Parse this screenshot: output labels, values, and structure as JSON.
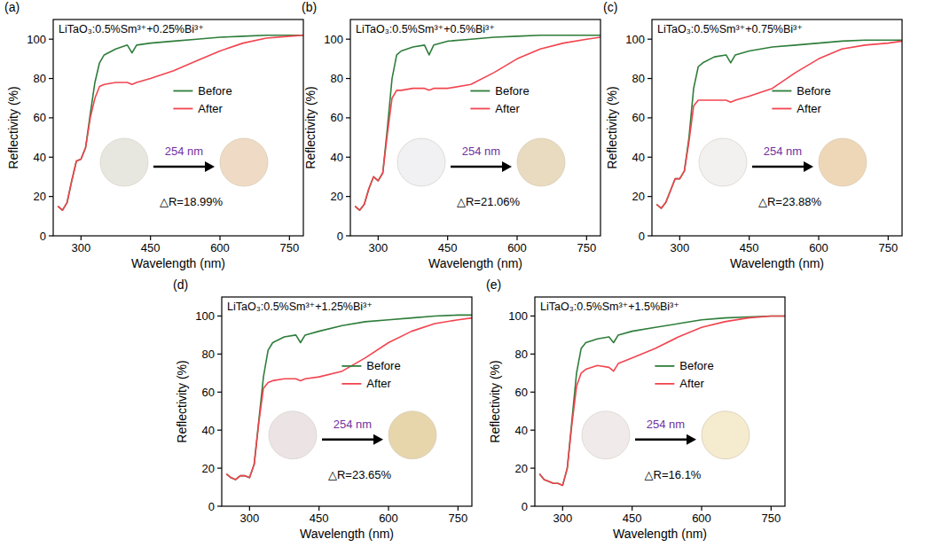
{
  "chart_data": [
    {
      "type": "line",
      "panel": "(a)",
      "title": "LiTaO₃:0.5%Sm³⁺+0.25%Bi³⁺",
      "x_label": "Wavelength (nm)",
      "y_label": "Reflectivity (%)",
      "x": [
        250,
        260,
        270,
        280,
        290,
        300,
        310,
        320,
        330,
        340,
        350,
        375,
        400,
        410,
        420,
        450,
        500,
        550,
        600,
        650,
        700,
        750,
        780
      ],
      "xlim": [
        240,
        780
      ],
      "ylim": [
        0,
        110
      ],
      "xticks": [
        300,
        450,
        600,
        750
      ],
      "yticks": [
        0,
        20,
        40,
        60,
        80,
        100
      ],
      "legend": "right",
      "series": [
        {
          "name": "Before",
          "color": "#2e7d3a",
          "values": [
            15,
            13,
            17,
            28,
            38,
            39,
            45,
            62,
            78,
            88,
            92,
            95,
            97,
            93,
            97,
            98,
            99,
            100,
            101,
            101.5,
            102,
            102,
            102
          ]
        },
        {
          "name": "After",
          "color": "#f2444f",
          "values": [
            15,
            13,
            17,
            28,
            38,
            39,
            45,
            60,
            70,
            76,
            77,
            78,
            78,
            77,
            78,
            80,
            84,
            89,
            94,
            98,
            100.5,
            101.5,
            102
          ]
        }
      ],
      "inset": {
        "excitation": "254 nm",
        "delta": "△R=18.99%",
        "colors": [
          "#e8e7df",
          "#efdbc5"
        ]
      }
    },
    {
      "type": "line",
      "panel": "(b)",
      "title": "LiTaO₃:0.5%Sm³⁺+0.5%Bi³⁺",
      "x_label": "Wavelength (nm)",
      "y_label": "Reflectivity (%)",
      "x": [
        250,
        260,
        270,
        280,
        290,
        300,
        310,
        320,
        330,
        340,
        350,
        375,
        400,
        410,
        420,
        450,
        500,
        550,
        600,
        650,
        700,
        750,
        780
      ],
      "xlim": [
        240,
        780
      ],
      "ylim": [
        0,
        110
      ],
      "xticks": [
        300,
        450,
        600,
        750
      ],
      "yticks": [
        0,
        20,
        40,
        60,
        80,
        100
      ],
      "legend": "right",
      "series": [
        {
          "name": "Before",
          "color": "#2e7d3a",
          "values": [
            15,
            13,
            16,
            24,
            30,
            28,
            32,
            55,
            80,
            92,
            94,
            96,
            97,
            92,
            97,
            99,
            100,
            101,
            101.5,
            102,
            102,
            102,
            102
          ]
        },
        {
          "name": "After",
          "color": "#f2444f",
          "values": [
            15,
            13,
            16,
            24,
            30,
            28,
            32,
            52,
            70,
            74,
            74,
            75,
            75,
            74,
            75,
            75,
            77,
            83,
            90,
            95,
            98,
            100,
            101
          ]
        }
      ],
      "inset": {
        "excitation": "254 nm",
        "delta": "△R=21.06%",
        "colors": [
          "#f1f0f3",
          "#e8dbbf"
        ]
      }
    },
    {
      "type": "line",
      "panel": "(c)",
      "title": "LiTaO₃:0.5%Sm³⁺+0.75%Bi³⁺",
      "x_label": "Wavelength (nm)",
      "y_label": "Reflectivity (%)",
      "x": [
        250,
        260,
        270,
        280,
        290,
        300,
        310,
        320,
        330,
        340,
        350,
        375,
        400,
        410,
        420,
        450,
        500,
        550,
        600,
        650,
        700,
        750,
        780
      ],
      "xlim": [
        240,
        780
      ],
      "ylim": [
        0,
        110
      ],
      "xticks": [
        300,
        450,
        600,
        750
      ],
      "yticks": [
        0,
        20,
        40,
        60,
        80,
        100
      ],
      "legend": "right",
      "series": [
        {
          "name": "Before",
          "color": "#2e7d3a",
          "values": [
            16,
            14,
            17,
            23,
            29,
            29,
            33,
            50,
            75,
            86,
            88,
            91,
            92,
            88,
            92,
            94,
            96,
            97,
            98,
            99,
            99.5,
            99.5,
            99.5
          ]
        },
        {
          "name": "After",
          "color": "#f2444f",
          "values": [
            16,
            14,
            17,
            23,
            29,
            29,
            33,
            48,
            66,
            69,
            69,
            69,
            69,
            68,
            69,
            71,
            75,
            83,
            90,
            95,
            97,
            98,
            99
          ]
        }
      ],
      "inset": {
        "excitation": "254 nm",
        "delta": "△R=23.88%",
        "colors": [
          "#f3f1f0",
          "#eed7b7"
        ]
      }
    },
    {
      "type": "line",
      "panel": "(d)",
      "title": "LiTaO₃:0.5%Sm³⁺+1.25%Bi³⁺",
      "x_label": "Wavelength (nm)",
      "y_label": "Reflectivity (%)",
      "x": [
        250,
        260,
        270,
        280,
        290,
        300,
        310,
        320,
        330,
        340,
        350,
        375,
        400,
        410,
        420,
        450,
        500,
        550,
        600,
        650,
        700,
        750,
        780
      ],
      "xlim": [
        240,
        780
      ],
      "ylim": [
        0,
        110
      ],
      "xticks": [
        300,
        450,
        600,
        750
      ],
      "yticks": [
        0,
        20,
        40,
        60,
        80,
        100
      ],
      "legend": "right",
      "series": [
        {
          "name": "Before",
          "color": "#2e7d3a",
          "values": [
            17,
            15,
            14,
            16,
            16,
            15,
            22,
            45,
            68,
            82,
            86,
            89,
            90,
            86,
            90,
            92,
            95,
            97,
            98,
            99,
            100,
            100.5,
            100.5
          ]
        },
        {
          "name": "After",
          "color": "#f2444f",
          "values": [
            17,
            15,
            14,
            16,
            16,
            15,
            22,
            44,
            62,
            65,
            66,
            67,
            67,
            66,
            67,
            68,
            71,
            78,
            86,
            92,
            96,
            98,
            99
          ]
        }
      ],
      "inset": {
        "excitation": "254 nm",
        "delta": "△R=23.65%",
        "colors": [
          "#ece3e5",
          "#e7d6ac"
        ]
      }
    },
    {
      "type": "line",
      "panel": "(e)",
      "title": "LiTaO₃:0.5%Sm³⁺+1.5%Bi³⁺",
      "x_label": "Wavelength (nm)",
      "y_label": "Reflectivity (%)",
      "x": [
        250,
        260,
        270,
        280,
        290,
        300,
        310,
        320,
        330,
        340,
        350,
        375,
        400,
        410,
        420,
        450,
        500,
        550,
        600,
        650,
        700,
        750,
        780
      ],
      "xlim": [
        240,
        780
      ],
      "ylim": [
        0,
        110
      ],
      "xticks": [
        300,
        450,
        600,
        750
      ],
      "yticks": [
        0,
        20,
        40,
        60,
        80,
        100
      ],
      "legend": "right",
      "series": [
        {
          "name": "Before",
          "color": "#2e7d3a",
          "values": [
            17,
            14,
            13,
            12,
            12,
            11,
            20,
            45,
            70,
            83,
            86,
            88,
            89,
            86,
            90,
            92,
            94,
            96,
            98,
            99,
            99.5,
            100,
            100
          ]
        },
        {
          "name": "After",
          "color": "#f2444f",
          "values": [
            17,
            14,
            13,
            12,
            12,
            11,
            20,
            43,
            63,
            70,
            72,
            74,
            73,
            71,
            75,
            78,
            83,
            89,
            94,
            97,
            99,
            100,
            100
          ]
        }
      ],
      "inset": {
        "excitation": "254 nm",
        "delta": "△R=16.1%",
        "colors": [
          "#f0ebea",
          "#f5ebcf"
        ]
      }
    }
  ]
}
